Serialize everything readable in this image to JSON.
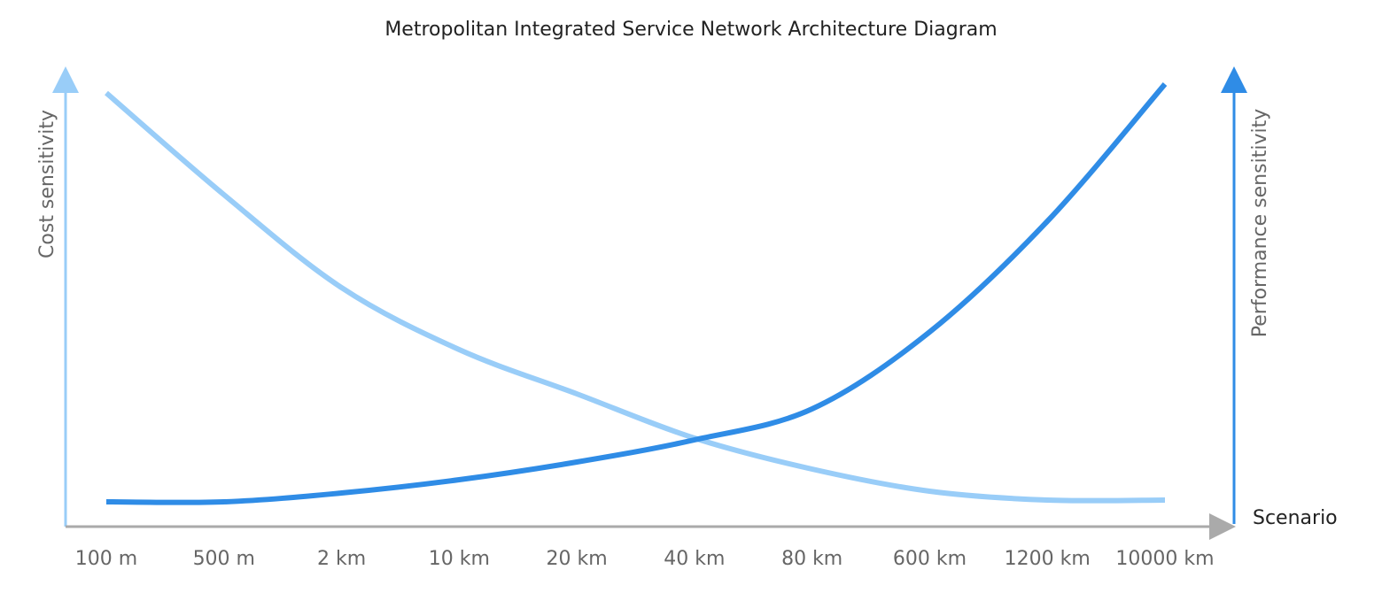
{
  "chart_data": {
    "type": "line",
    "title": "Metropolitan Integrated Service Network Architecture Diagram",
    "x_label": "Scenario",
    "y_label": "Cost sensitivity",
    "y2_label": "Performance sensitivity",
    "categories": [
      "100 m",
      "500 m",
      "2 km",
      "10 km",
      "20 km",
      "40 km",
      "80 km",
      "600 km",
      "1200 km",
      "10000 km"
    ],
    "ylim": [
      0,
      100
    ],
    "y2lim": [
      0,
      100
    ],
    "series": [
      {
        "color": "#99cdf8",
        "values": [
          98,
          75,
          54,
          40,
          30,
          20,
          13,
          8,
          6,
          6
        ]
      },
      {
        "color": "#2f8ce6",
        "axis": "y2",
        "values": [
          5.6,
          5.6,
          7.6,
          10.6,
          14.6,
          19.6,
          26.6,
          44,
          69,
          100
        ]
      }
    ]
  }
}
